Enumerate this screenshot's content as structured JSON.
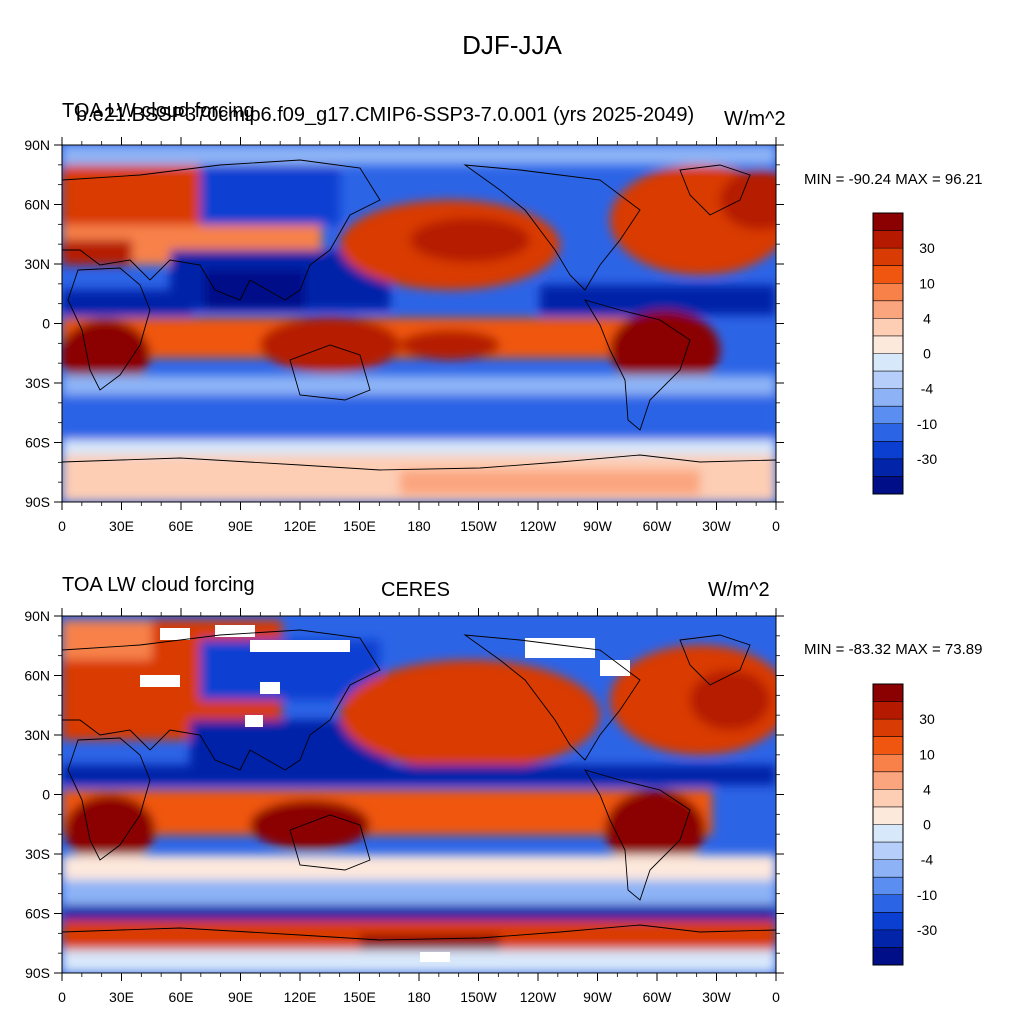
{
  "figure": {
    "title": "DJF-JJA"
  },
  "panels": [
    {
      "title_left": "TOA LW cloud forcing",
      "title_center": "b.e21.BSSP370cmip6.f09_g17.CMIP6-SSP3-7.0.001 (yrs 2025-2049)",
      "title_right": "W/m^2",
      "stats": "MIN = -90.24 MAX =  96.21"
    },
    {
      "title_left": "TOA LW cloud forcing",
      "title_center": "CERES",
      "title_right": "W/m^2",
      "stats": "MIN = -83.32 MAX =  73.89"
    }
  ],
  "axes": {
    "lat_labels": [
      "90N",
      "60N",
      "30N",
      "0",
      "30S",
      "60S",
      "90S"
    ],
    "lon_labels": [
      "0",
      "30E",
      "60E",
      "90E",
      "120E",
      "150E",
      "180",
      "150W",
      "120W",
      "90W",
      "60W",
      "30W",
      "0"
    ]
  },
  "colorbar": {
    "labels": [
      "30",
      "10",
      "4",
      "0",
      "-4",
      "-10",
      "-30"
    ],
    "colors": [
      "#8b0000",
      "#b51a00",
      "#d93b04",
      "#f0560f",
      "#f78149",
      "#fba57f",
      "#fdcdb4",
      "#fde8dc",
      "#d8e8fb",
      "#b6cffa",
      "#8db3f6",
      "#5a8ef1",
      "#2c64e6",
      "#0a3fd2",
      "#0224a8",
      "#000f88"
    ]
  }
}
